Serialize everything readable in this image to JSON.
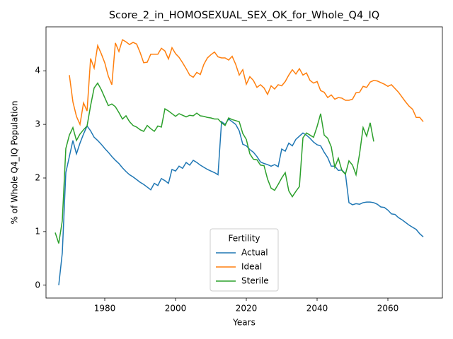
{
  "chart_data": {
    "type": "line",
    "title": "Score_2_in_HOMOSEXUAL_SEX_OK_for_Whole_Q4_IQ",
    "x_label": "Years",
    "y_label": "% of Whole Q4_IQ Population",
    "x": [
      1966,
      1967,
      1968,
      1969,
      1970,
      1971,
      1972,
      1973,
      1974,
      1975,
      1976,
      1977,
      1978,
      1979,
      1980,
      1981,
      1982,
      1983,
      1984,
      1985,
      1986,
      1987,
      1988,
      1989,
      1990,
      1991,
      1992,
      1993,
      1994,
      1995,
      1996,
      1997,
      1998,
      1999,
      2000,
      2001,
      2002,
      2003,
      2004,
      2005,
      2006,
      2007,
      2008,
      2009,
      2010,
      2011,
      2012,
      2013,
      2014,
      2015,
      2016,
      2017,
      2018,
      2019,
      2020,
      2021,
      2022,
      2023,
      2024,
      2025,
      2026,
      2027,
      2028,
      2029,
      2030,
      2031,
      2032,
      2033,
      2034,
      2035,
      2036,
      2037,
      2038,
      2039,
      2040,
      2041,
      2042,
      2043,
      2044,
      2045,
      2046,
      2047,
      2048,
      2049,
      2050,
      2051,
      2052,
      2053,
      2054,
      2055,
      2056,
      2057,
      2058,
      2059,
      2060,
      2061,
      2062,
      2063,
      2064,
      2065,
      2066,
      2067,
      2068,
      2069,
      2070
    ],
    "series": [
      {
        "name": "Actual",
        "color": "#1f77b4",
        "values": [
          null,
          0,
          0.6,
          2.1,
          2.4,
          2.7,
          2.45,
          2.65,
          2.82,
          2.97,
          2.88,
          2.76,
          2.7,
          2.63,
          2.55,
          2.48,
          2.4,
          2.33,
          2.27,
          2.19,
          2.12,
          2.06,
          2.02,
          1.97,
          1.92,
          1.88,
          1.83,
          1.78,
          1.9,
          1.86,
          1.99,
          1.95,
          1.9,
          2.16,
          2.13,
          2.22,
          2.18,
          2.29,
          2.24,
          2.33,
          2.29,
          2.24,
          2.2,
          2.16,
          2.13,
          2.1,
          2.06,
          3.05,
          3.0,
          3.1,
          3.05,
          3.0,
          2.88,
          2.63,
          2.6,
          2.53,
          2.48,
          2.4,
          2.3,
          2.27,
          2.25,
          2.22,
          2.25,
          2.21,
          2.54,
          2.5,
          2.65,
          2.6,
          2.72,
          2.78,
          2.84,
          2.8,
          2.74,
          2.67,
          2.62,
          2.6,
          2.48,
          2.38,
          2.22,
          2.22,
          2.14,
          2.15,
          2.08,
          1.54,
          1.5,
          1.52,
          1.51,
          1.54,
          1.55,
          1.55,
          1.54,
          1.51,
          1.46,
          1.45,
          1.4,
          1.33,
          1.32,
          1.26,
          1.22,
          1.17,
          1.12,
          1.08,
          1.04,
          0.96,
          0.9
        ]
      },
      {
        "name": "Ideal",
        "color": "#ff7f0e",
        "values": [
          null,
          null,
          null,
          null,
          3.92,
          3.42,
          3.15,
          3.0,
          3.4,
          3.25,
          4.23,
          4.05,
          4.47,
          4.32,
          4.15,
          3.9,
          3.74,
          4.52,
          4.36,
          4.58,
          4.54,
          4.49,
          4.53,
          4.5,
          4.34,
          4.15,
          4.16,
          4.31,
          4.31,
          4.31,
          4.42,
          4.37,
          4.22,
          4.43,
          4.32,
          4.25,
          4.15,
          4.04,
          3.92,
          3.88,
          3.97,
          3.93,
          4.12,
          4.24,
          4.3,
          4.35,
          4.26,
          4.24,
          4.24,
          4.2,
          4.27,
          4.12,
          3.92,
          4.02,
          3.75,
          3.89,
          3.82,
          3.69,
          3.74,
          3.68,
          3.56,
          3.72,
          3.66,
          3.74,
          3.72,
          3.8,
          3.92,
          4.02,
          3.94,
          4.04,
          3.92,
          3.96,
          3.82,
          3.77,
          3.8,
          3.63,
          3.6,
          3.5,
          3.55,
          3.47,
          3.5,
          3.49,
          3.45,
          3.45,
          3.47,
          3.59,
          3.6,
          3.71,
          3.69,
          3.79,
          3.82,
          3.81,
          3.78,
          3.75,
          3.71,
          3.74,
          3.67,
          3.6,
          3.51,
          3.42,
          3.34,
          3.28,
          3.13,
          3.13,
          3.05
        ]
      },
      {
        "name": "Sterile",
        "color": "#2ca02c",
        "values": [
          0.98,
          0.78,
          1.2,
          2.55,
          2.8,
          2.94,
          2.7,
          2.82,
          2.9,
          2.97,
          3.35,
          3.68,
          3.77,
          3.65,
          3.5,
          3.35,
          3.38,
          3.33,
          3.22,
          3.1,
          3.16,
          3.05,
          2.98,
          2.95,
          2.9,
          2.87,
          2.98,
          2.92,
          2.87,
          2.97,
          2.95,
          3.29,
          3.25,
          3.2,
          3.15,
          3.2,
          3.17,
          3.14,
          3.17,
          3.16,
          3.21,
          3.16,
          3.15,
          3.13,
          3.12,
          3.1,
          3.1,
          3.03,
          2.98,
          3.12,
          3.09,
          3.07,
          3.05,
          2.83,
          2.72,
          2.45,
          2.35,
          2.34,
          2.24,
          2.23,
          1.98,
          1.81,
          1.77,
          1.88,
          2.0,
          2.1,
          1.76,
          1.65,
          1.75,
          1.84,
          2.75,
          2.84,
          2.8,
          2.76,
          2.96,
          3.2,
          2.8,
          2.74,
          2.58,
          2.2,
          2.37,
          2.14,
          2.07,
          2.32,
          2.24,
          2.06,
          2.45,
          2.94,
          2.78,
          3.03,
          2.68,
          null,
          null,
          null,
          null,
          null,
          null,
          null,
          null,
          null,
          null,
          null,
          null,
          null,
          null
        ]
      }
    ],
    "xlim": [
      1963.4,
      2075.4
    ],
    "ylim": [
      -0.24,
      4.82
    ],
    "xticks": [
      1980,
      2000,
      2020,
      2040,
      2060
    ],
    "yticks": [
      0,
      1,
      2,
      3,
      4
    ],
    "legend_title": "Fertility",
    "legend_loc": "lower center"
  }
}
